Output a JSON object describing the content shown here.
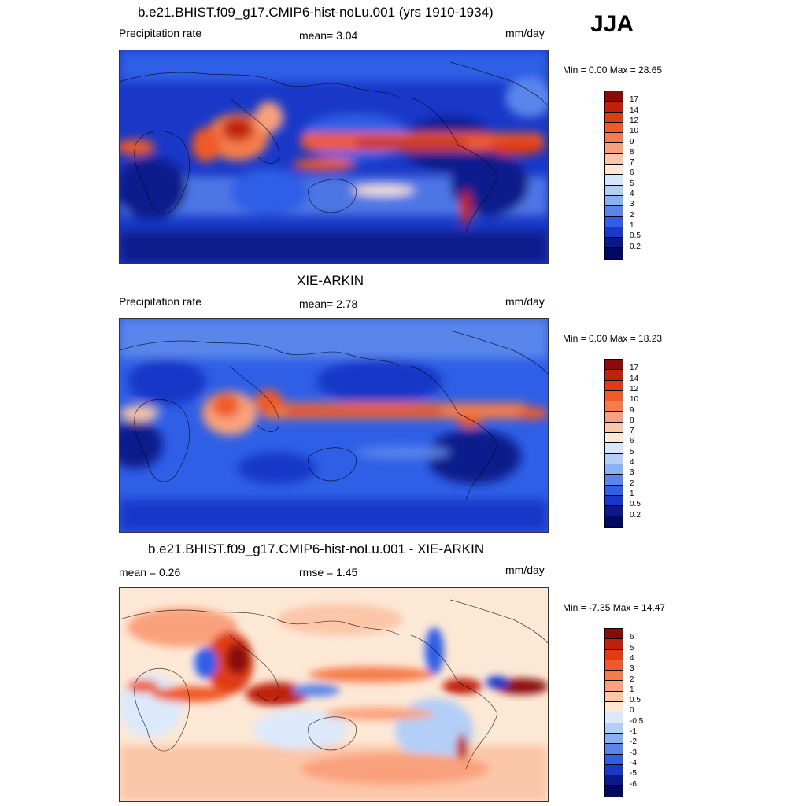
{
  "season": "JJA",
  "panels": [
    {
      "title": "b.e21.BHIST.f09_g17.CMIP6-hist-noLu.001 (yrs 1910-1934)",
      "left_label": "Precipitation rate",
      "center_label": "mean=   3.04",
      "units": "mm/day",
      "minmax": "Min =   0.00 Max =  28.65",
      "levels": [
        "17",
        "14",
        "12",
        "10",
        "9",
        "8",
        "7",
        "6",
        "5",
        "4",
        "3",
        "2",
        "1",
        "0.5",
        "0.2"
      ],
      "colors": [
        "#8b0a0a",
        "#c0200c",
        "#e03b12",
        "#f05a28",
        "#f57d4c",
        "#f9a17c",
        "#fcc6a8",
        "#fde8d6",
        "#d6e6fb",
        "#b3cff7",
        "#8cb1f2",
        "#5a86ec",
        "#2f5fe6",
        "#1938c8",
        "#0a1a8c",
        "#020a60"
      ]
    },
    {
      "title": "XIE-ARKIN",
      "left_label": "Precipitation rate",
      "center_label": "mean=   2.78",
      "units": "mm/day",
      "minmax": "Min =   0.00 Max =  18.23",
      "levels": [
        "17",
        "14",
        "12",
        "10",
        "9",
        "8",
        "7",
        "6",
        "5",
        "4",
        "3",
        "2",
        "1",
        "0.5",
        "0.2"
      ],
      "colors": [
        "#8b0a0a",
        "#c0200c",
        "#e03b12",
        "#f05a28",
        "#f57d4c",
        "#f9a17c",
        "#fcc6a8",
        "#fde8d6",
        "#d6e6fb",
        "#b3cff7",
        "#8cb1f2",
        "#5a86ec",
        "#2f5fe6",
        "#1938c8",
        "#0a1a8c",
        "#020a60"
      ]
    },
    {
      "title": "b.e21.BHIST.f09_g17.CMIP6-hist-noLu.001 - XIE-ARKIN",
      "left_label": "mean =   0.26",
      "center_label": "rmse =   1.45",
      "units": "mm/day",
      "minmax": "Min =  -7.35 Max =  14.47",
      "levels": [
        "6",
        "5",
        "4",
        "3",
        "2",
        "1",
        "0.5",
        "0",
        "-0.5",
        "-1",
        "-2",
        "-3",
        "-4",
        "-5",
        "-6"
      ],
      "colors": [
        "#8b0a0a",
        "#c0200c",
        "#e03b12",
        "#f05a28",
        "#f57d4c",
        "#f9a17c",
        "#fcc6a8",
        "#fde8d6",
        "#dce9fb",
        "#b3cff7",
        "#8cb1f2",
        "#5a86ec",
        "#2f5fe6",
        "#1938c8",
        "#0a1a8c",
        "#020a60"
      ]
    }
  ]
}
